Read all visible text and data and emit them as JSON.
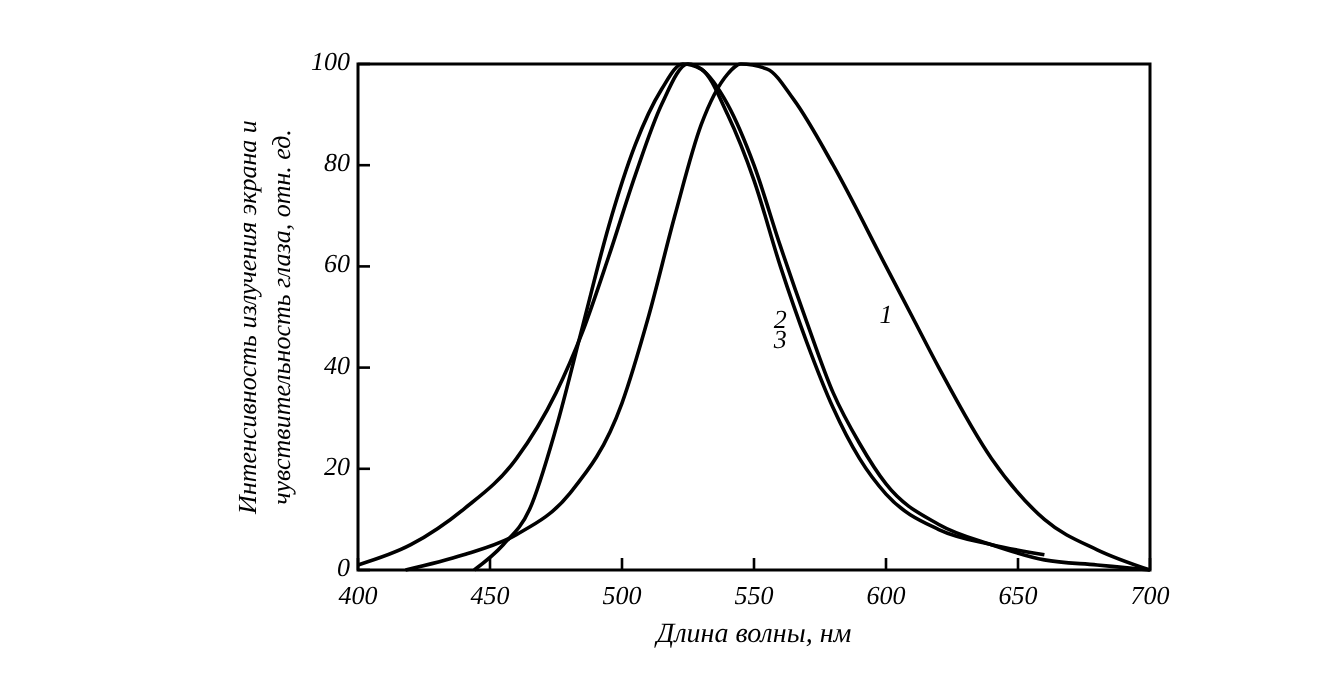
{
  "chart_data": {
    "type": "line",
    "xlabel": "Длина волны, нм",
    "ylabel": "Интенсивность излучения экрана и чувствительность глаза, отн. ед.",
    "xlim": [
      400,
      700
    ],
    "ylim": [
      0,
      100
    ],
    "xticks": [
      400,
      450,
      500,
      550,
      600,
      650,
      700
    ],
    "yticks": [
      0,
      20,
      40,
      60,
      80,
      100
    ],
    "grid": false,
    "legend": false,
    "marker": "none",
    "line_style": "solid",
    "series": [
      {
        "name": "1",
        "color": "#000000",
        "x": [
          418,
          440,
          460,
          480,
          500,
          510,
          520,
          530,
          540,
          545,
          555,
          565,
          580,
          600,
          610,
          620,
          640,
          660,
          680,
          700
        ],
        "values": [
          0,
          3,
          7,
          15,
          33,
          50,
          70,
          88,
          98,
          100,
          99,
          93,
          80,
          60,
          50,
          40,
          22,
          10,
          4,
          0
        ]
      },
      {
        "name": "2",
        "color": "#000000",
        "x": [
          400,
          420,
          440,
          460,
          475,
          485,
          495,
          505,
          515,
          525,
          530,
          540,
          550,
          560,
          570,
          580,
          590,
          600,
          620,
          640,
          660,
          680,
          700
        ],
        "values": [
          1,
          5,
          12,
          22,
          35,
          47,
          62,
          78,
          92,
          100,
          99,
          92,
          80,
          64,
          49,
          35,
          25,
          17,
          9,
          5,
          2,
          1,
          0
        ]
      },
      {
        "name": "3",
        "color": "#000000",
        "x": [
          444,
          455,
          465,
          475,
          485,
          495,
          505,
          515,
          523,
          530,
          540,
          550,
          560,
          570,
          580,
          590,
          600,
          620,
          640,
          660
        ],
        "values": [
          0,
          5,
          12,
          28,
          48,
          68,
          84,
          95,
          100,
          99,
          90,
          77,
          60,
          45,
          32,
          22,
          15,
          8,
          5,
          3
        ]
      }
    ]
  }
}
